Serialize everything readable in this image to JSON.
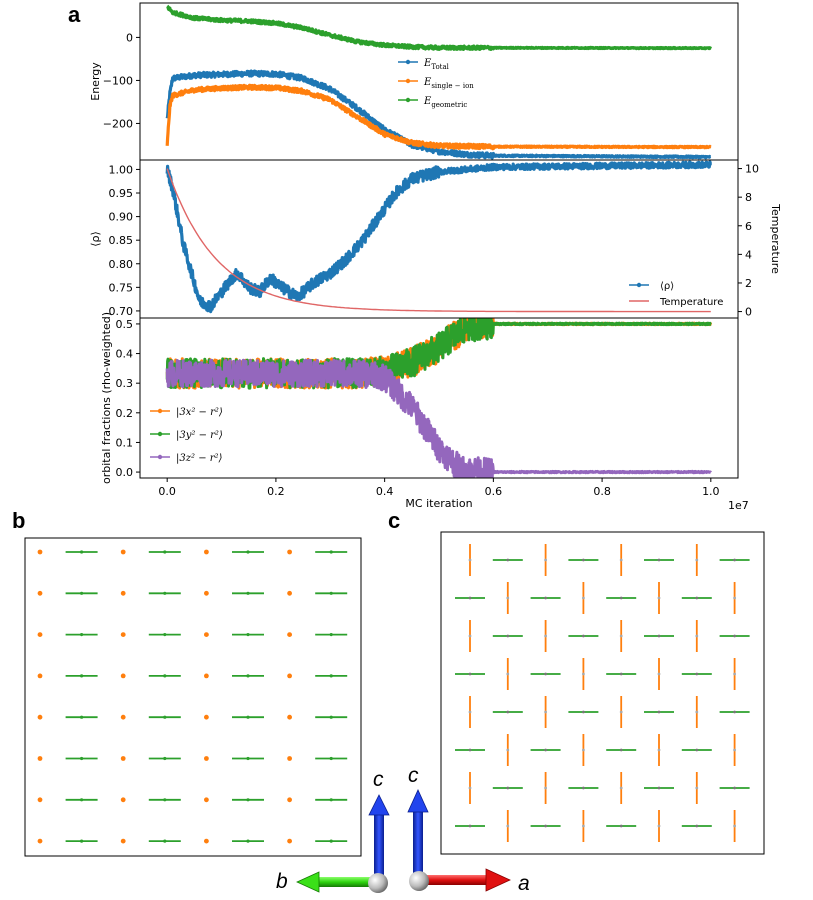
{
  "panels": {
    "a": "a",
    "b": "b",
    "c": "c"
  },
  "colors": {
    "blue": "#1f77b4",
    "orange": "#ff7f0e",
    "green": "#2ca02c",
    "purple": "#9467bd",
    "red": "#d62728",
    "temp": "#e06666"
  },
  "chart_data": [
    {
      "id": "energy",
      "type": "line",
      "xlim": [
        -0.05,
        1.05
      ],
      "x_scale_label": "1e7",
      "ylabel": "Energy",
      "ylim": [
        -285,
        80
      ],
      "yticks": [
        0,
        -100,
        -200
      ],
      "yticklabels": [
        "0",
        "−100",
        "−200"
      ],
      "legend": [
        {
          "main": "E",
          "sub": "Total",
          "color": "blue"
        },
        {
          "main": "E",
          "sub": "single − ion",
          "color": "orange"
        },
        {
          "main": "E",
          "sub": "geometric",
          "color": "green"
        }
      ],
      "series": [
        {
          "name": "E_Total",
          "color": "blue",
          "noise": 6,
          "points": [
            [
              0,
              -190
            ],
            [
              0.005,
              -130
            ],
            [
              0.01,
              -95
            ],
            [
              0.05,
              -88
            ],
            [
              0.1,
              -86
            ],
            [
              0.15,
              -84
            ],
            [
              0.2,
              -85
            ],
            [
              0.25,
              -95
            ],
            [
              0.3,
              -120
            ],
            [
              0.35,
              -165
            ],
            [
              0.4,
              -215
            ],
            [
              0.45,
              -250
            ],
            [
              0.5,
              -265
            ],
            [
              0.55,
              -272
            ],
            [
              0.6,
              -275
            ],
            [
              1.0,
              -278
            ]
          ]
        },
        {
          "name": "E_single-ion",
          "color": "orange",
          "noise": 5,
          "points": [
            [
              0,
              -250
            ],
            [
              0.005,
              -160
            ],
            [
              0.01,
              -135
            ],
            [
              0.05,
              -122
            ],
            [
              0.1,
              -118
            ],
            [
              0.15,
              -116
            ],
            [
              0.2,
              -117
            ],
            [
              0.25,
              -125
            ],
            [
              0.3,
              -145
            ],
            [
              0.35,
              -185
            ],
            [
              0.4,
              -225
            ],
            [
              0.45,
              -245
            ],
            [
              0.5,
              -252
            ],
            [
              0.6,
              -254
            ],
            [
              1.0,
              -255
            ]
          ]
        },
        {
          "name": "E_geometric",
          "color": "green",
          "noise": 4,
          "points": [
            [
              0,
              72
            ],
            [
              0.01,
              58
            ],
            [
              0.05,
              45
            ],
            [
              0.1,
              40
            ],
            [
              0.15,
              38
            ],
            [
              0.2,
              33
            ],
            [
              0.25,
              22
            ],
            [
              0.3,
              5
            ],
            [
              0.35,
              -10
            ],
            [
              0.4,
              -18
            ],
            [
              0.45,
              -22
            ],
            [
              0.5,
              -24
            ],
            [
              1.0,
              -25
            ]
          ]
        }
      ]
    },
    {
      "id": "rho",
      "type": "line",
      "xlim": [
        -0.05,
        1.05
      ],
      "ylabel": "⟨ρ⟩",
      "ylim": [
        0.685,
        1.02
      ],
      "yticks": [
        1.0,
        0.95,
        0.9,
        0.85,
        0.8,
        0.75,
        0.7
      ],
      "yticklabels": [
        "1.00",
        "0.95",
        "0.90",
        "0.85",
        "0.80",
        "0.75",
        "0.70"
      ],
      "y2label": "Temperature",
      "y2lim": [
        -0.45,
        10.6
      ],
      "y2ticks": [
        0,
        2,
        4,
        6,
        8,
        10
      ],
      "y2ticklabels": [
        "0",
        "2",
        "4",
        "6",
        "8",
        "10"
      ],
      "legend": [
        {
          "label": "⟨ρ⟩",
          "color": "blue",
          "marker": true
        },
        {
          "label": "Temperature",
          "color": "temp",
          "marker": false
        }
      ],
      "series": [
        {
          "name": "⟨ρ⟩",
          "color": "blue",
          "noise": 0.012,
          "points": [
            [
              0,
              1.0
            ],
            [
              0.01,
              0.96
            ],
            [
              0.02,
              0.9
            ],
            [
              0.03,
              0.84
            ],
            [
              0.04,
              0.8
            ],
            [
              0.05,
              0.76
            ],
            [
              0.06,
              0.72
            ],
            [
              0.08,
              0.71
            ],
            [
              0.1,
              0.74
            ],
            [
              0.12,
              0.77
            ],
            [
              0.13,
              0.78
            ],
            [
              0.15,
              0.75
            ],
            [
              0.17,
              0.74
            ],
            [
              0.19,
              0.77
            ],
            [
              0.21,
              0.75
            ],
            [
              0.24,
              0.73
            ],
            [
              0.27,
              0.76
            ],
            [
              0.3,
              0.78
            ],
            [
              0.33,
              0.81
            ],
            [
              0.36,
              0.85
            ],
            [
              0.39,
              0.9
            ],
            [
              0.42,
              0.95
            ],
            [
              0.45,
              0.98
            ],
            [
              0.5,
              0.995
            ],
            [
              0.6,
              1.005
            ],
            [
              1.0,
              1.01
            ]
          ]
        },
        {
          "name": "Temperature",
          "color": "temp",
          "axis": "y2",
          "noise": 0,
          "decay": {
            "T0": 10,
            "tau": 0.09
          }
        }
      ]
    },
    {
      "id": "orbitals",
      "type": "line",
      "xlim": [
        -0.05,
        1.05
      ],
      "xlabel": "MC iteration",
      "xticks": [
        0.0,
        0.2,
        0.4,
        0.6,
        0.8,
        1.0
      ],
      "xticklabels": [
        "0.0",
        "0.2",
        "0.4",
        "0.6",
        "0.8",
        "1.0"
      ],
      "ylabel": "orbital fractions (rho-weighted)",
      "ylim": [
        -0.02,
        0.52
      ],
      "yticks": [
        0.5,
        0.4,
        0.3,
        0.2,
        0.1,
        0.0
      ],
      "yticklabels": [
        "0.5",
        "0.4",
        "0.3",
        "0.2",
        "0.1",
        "0.0"
      ],
      "legend": [
        {
          "label": "|3x² − r²⟩",
          "color": "orange"
        },
        {
          "label": "|3y² − r²⟩",
          "color": "green"
        },
        {
          "label": "|3z² − r²⟩",
          "color": "purple"
        }
      ],
      "series": [
        {
          "name": "|3x²−r²⟩",
          "color": "orange",
          "noise": 0.05,
          "points": [
            [
              0,
              0.333
            ],
            [
              0.35,
              0.333
            ],
            [
              0.4,
              0.34
            ],
            [
              0.45,
              0.37
            ],
            [
              0.5,
              0.42
            ],
            [
              0.55,
              0.49
            ],
            [
              0.6,
              0.5
            ],
            [
              1.0,
              0.5
            ]
          ]
        },
        {
          "name": "|3y²−r²⟩",
          "color": "green",
          "noise": 0.05,
          "points": [
            [
              0,
              0.333
            ],
            [
              0.35,
              0.333
            ],
            [
              0.4,
              0.34
            ],
            [
              0.45,
              0.37
            ],
            [
              0.5,
              0.42
            ],
            [
              0.55,
              0.49
            ],
            [
              0.6,
              0.5
            ],
            [
              1.0,
              0.5
            ]
          ]
        },
        {
          "name": "|3z²−r²⟩",
          "color": "purple",
          "noise": 0.045,
          "points": [
            [
              0,
              0.333
            ],
            [
              0.35,
              0.333
            ],
            [
              0.4,
              0.32
            ],
            [
              0.45,
              0.22
            ],
            [
              0.5,
              0.08
            ],
            [
              0.54,
              0.01
            ],
            [
              0.6,
              0.0
            ],
            [
              1.0,
              0.0
            ]
          ]
        }
      ]
    },
    {
      "id": "lattice_b",
      "type": "scatter",
      "description": "8x8 lattice: columns alternate orange dots and green horizontal bars",
      "rows": 8,
      "cols": 8,
      "pattern": [
        [
          "dot",
          "h",
          "dot",
          "h",
          "dot",
          "h",
          "dot",
          "h"
        ]
      ]
    },
    {
      "id": "lattice_c",
      "type": "scatter",
      "description": "8x8 checkerboard: orange vertical bars and green horizontal bars",
      "rows": 8,
      "cols": 8,
      "pattern": [
        [
          "v",
          "h",
          "v",
          "h",
          "v",
          "h",
          "v",
          "h"
        ],
        [
          "h",
          "v",
          "h",
          "v",
          "h",
          "v",
          "h",
          "v"
        ]
      ]
    }
  ],
  "axes_labels": {
    "c_left": "c",
    "c_right": "c",
    "b": "b",
    "a": "a"
  }
}
